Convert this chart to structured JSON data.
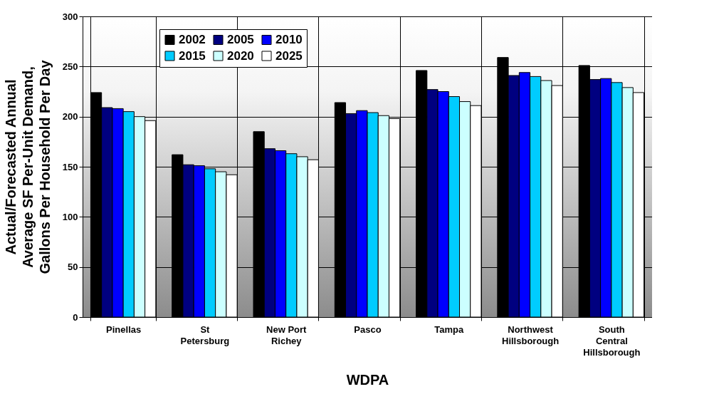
{
  "chart_data": {
    "type": "bar",
    "xlabel": "WDPA",
    "ylabel": "Actual/Forecasted Annual Average SF Per-Unit Demand, Gallons Per Household Per Day",
    "categories": [
      "Pinellas",
      "St Petersburg",
      "New Port Richey",
      "Pasco",
      "Tampa",
      "Northwest Hillsborough",
      "South Central Hillsborough"
    ],
    "series": [
      {
        "name": "2002",
        "color": "#000000",
        "values": [
          224,
          162,
          185,
          214,
          246,
          259,
          251
        ]
      },
      {
        "name": "2005",
        "color": "#000080",
        "values": [
          209,
          152,
          168,
          203,
          227,
          241,
          237
        ]
      },
      {
        "name": "2010",
        "color": "#0000ff",
        "values": [
          208,
          151,
          166,
          206,
          225,
          244,
          238
        ]
      },
      {
        "name": "2015",
        "color": "#00ccff",
        "values": [
          205,
          148,
          163,
          204,
          220,
          240,
          234
        ]
      },
      {
        "name": "2020",
        "color": "#ccffff",
        "values": [
          200,
          145,
          160,
          201,
          215,
          236,
          229
        ]
      },
      {
        "name": "2025",
        "color": "#ffffff",
        "values": [
          196,
          142,
          157,
          198,
          211,
          231,
          224
        ]
      }
    ],
    "ylim": [
      0,
      300
    ],
    "yticks": [
      0,
      50,
      100,
      150,
      200,
      250,
      300
    ],
    "grid": true,
    "legend": "top left"
  }
}
